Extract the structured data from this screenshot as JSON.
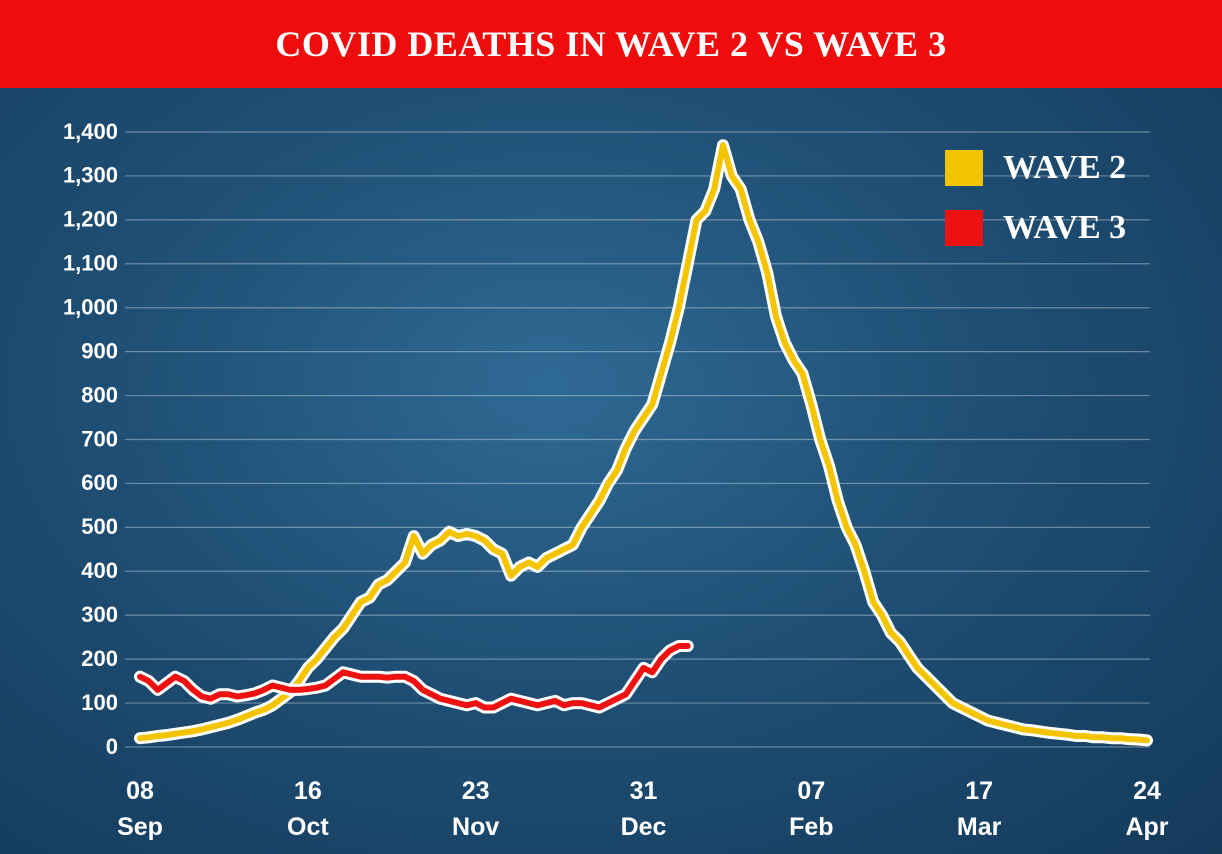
{
  "chart_data": {
    "type": "line",
    "title": "COVID DEATHS IN WAVE 2 VS WAVE 3",
    "categories": [
      "08 Sep",
      null,
      null,
      null,
      null,
      null,
      null,
      null,
      null,
      null,
      null,
      null,
      null,
      null,
      null,
      null,
      null,
      null,
      null,
      "16 Oct",
      null,
      null,
      null,
      null,
      null,
      null,
      null,
      null,
      null,
      null,
      null,
      null,
      null,
      null,
      null,
      null,
      null,
      null,
      "23 Nov",
      null,
      null,
      null,
      null,
      null,
      null,
      null,
      null,
      null,
      null,
      null,
      null,
      null,
      null,
      null,
      null,
      null,
      null,
      "31 Dec",
      null,
      null,
      null,
      null,
      null,
      null,
      null,
      null,
      null,
      null,
      null,
      null,
      null,
      null,
      null,
      null,
      null,
      null,
      "07 Feb",
      null,
      null,
      null,
      null,
      null,
      null,
      null,
      null,
      null,
      null,
      null,
      null,
      null,
      null,
      null,
      null,
      null,
      null,
      "17 Mar",
      null,
      null,
      null,
      null,
      null,
      null,
      null,
      null,
      null,
      null,
      null,
      null,
      null,
      null,
      null,
      null,
      null,
      null,
      "24 Apr"
    ],
    "series": [
      {
        "name": "WAVE 2",
        "color": "#f5c400",
        "values": [
          20,
          22,
          25,
          27,
          30,
          33,
          36,
          40,
          45,
          50,
          55,
          62,
          70,
          78,
          85,
          95,
          110,
          125,
          150,
          180,
          200,
          225,
          250,
          270,
          300,
          330,
          340,
          370,
          380,
          400,
          420,
          480,
          440,
          460,
          470,
          490,
          480,
          485,
          480,
          470,
          450,
          440,
          390,
          410,
          420,
          410,
          430,
          440,
          450,
          460,
          500,
          530,
          560,
          600,
          630,
          680,
          720,
          750,
          780,
          850,
          920,
          1000,
          1100,
          1200,
          1220,
          1270,
          1370,
          1300,
          1270,
          1200,
          1150,
          1080,
          980,
          920,
          880,
          850,
          780,
          700,
          640,
          560,
          500,
          460,
          400,
          330,
          300,
          260,
          240,
          210,
          180,
          160,
          140,
          120,
          100,
          90,
          80,
          70,
          60,
          55,
          50,
          45,
          40,
          38,
          35,
          32,
          30,
          28,
          25,
          25,
          22,
          22,
          20,
          20,
          18,
          17,
          15
        ]
      },
      {
        "name": "WAVE 3",
        "color": "#ee1111",
        "values": [
          160,
          150,
          130,
          145,
          160,
          150,
          130,
          115,
          110,
          120,
          120,
          115,
          118,
          122,
          130,
          140,
          135,
          130,
          130,
          132,
          135,
          140,
          155,
          170,
          165,
          160,
          160,
          160,
          158,
          160,
          160,
          150,
          130,
          120,
          110,
          105,
          100,
          95,
          100,
          90,
          90,
          100,
          110,
          105,
          100,
          95,
          100,
          105,
          95,
          100,
          100,
          95,
          90,
          100,
          110,
          120,
          150,
          180,
          170,
          200,
          220,
          230,
          230,
          null,
          null,
          null,
          null,
          null,
          null,
          null,
          null,
          null,
          null,
          null,
          null,
          null,
          null,
          null,
          null,
          null,
          null,
          null,
          null,
          null,
          null,
          null,
          null,
          null,
          null,
          null,
          null,
          null,
          null,
          null,
          null,
          null,
          null,
          null,
          null,
          null,
          null,
          null,
          null,
          null,
          null,
          null,
          null,
          null,
          null,
          null,
          null,
          null,
          null,
          null,
          null
        ]
      }
    ],
    "ylim": [
      0,
      1400
    ],
    "yticks": [
      0,
      100,
      200,
      300,
      400,
      500,
      600,
      700,
      800,
      900,
      {
        "value": 1000,
        "label": "1,000"
      },
      {
        "value": 1100,
        "label": "1,100"
      },
      {
        "value": 1200,
        "label": "1,200"
      },
      {
        "value": 1300,
        "label": "1,300"
      },
      {
        "value": 1400,
        "label": "1,400"
      }
    ],
    "grid": true,
    "legend": "top-right"
  }
}
